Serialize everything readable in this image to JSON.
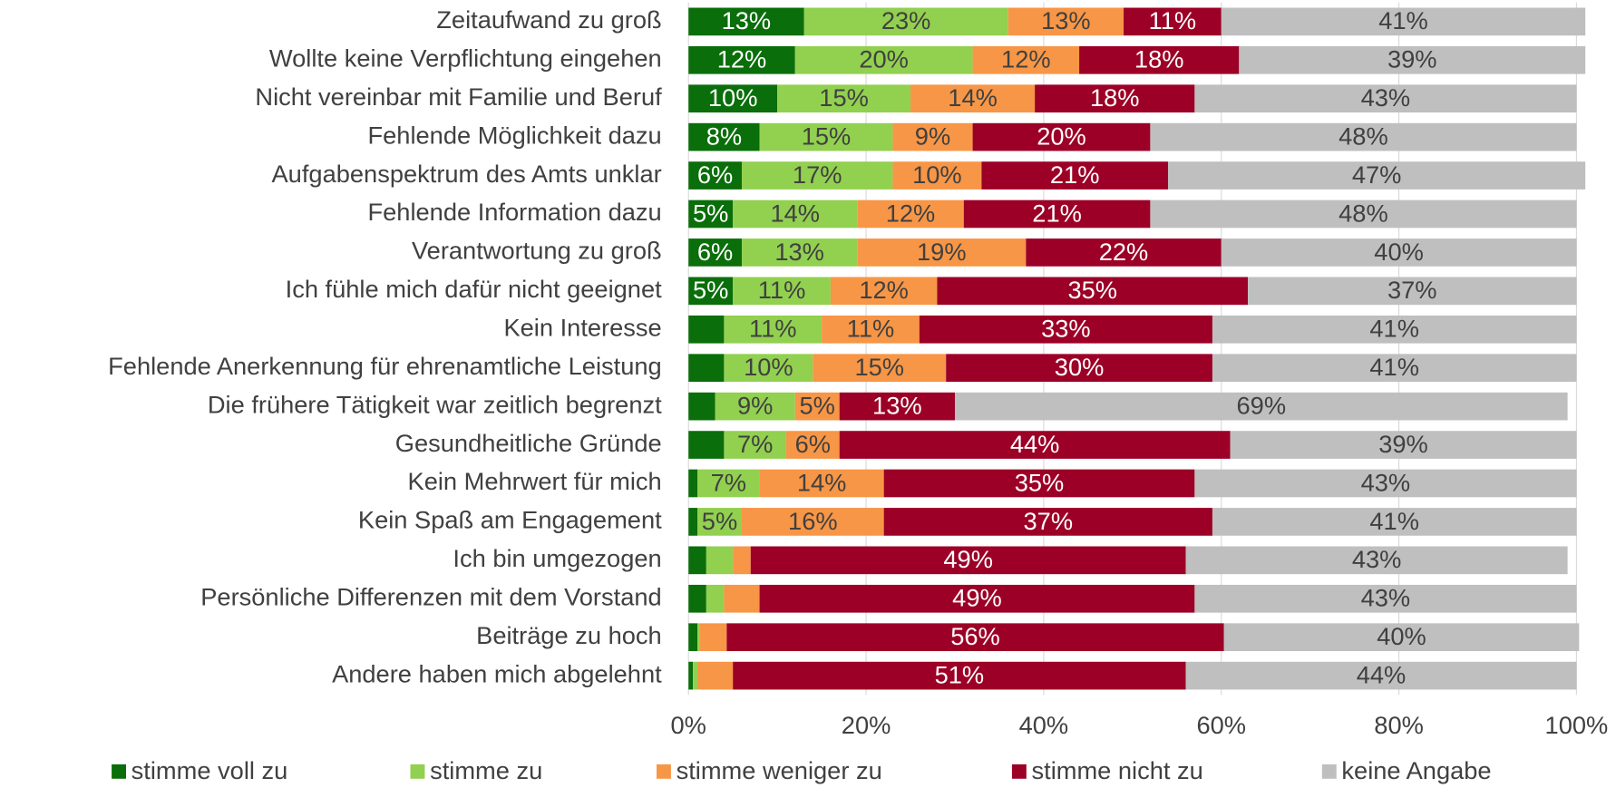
{
  "chart_data": {
    "type": "stacked-barh",
    "categories": [
      "Zeitaufwand zu groß",
      "Wollte keine Verpflichtung eingehen",
      "Nicht vereinbar mit Familie und Beruf",
      "Fehlende Möglichkeit dazu",
      "Aufgabenspektrum des Amts unklar",
      "Fehlende Information dazu",
      "Verantwortung zu groß",
      "Ich fühle mich dafür nicht geeignet",
      "Kein Interesse",
      "Fehlende Anerkennung für ehrenamtliche Leistung",
      "Die frühere Tätigkeit war zeitlich begrenzt",
      "Gesundheitliche Gründe",
      "Kein Mehrwert für mich",
      "Kein Spaß am Engagement",
      "Ich bin umgezogen",
      "Persönliche Differenzen mit dem Vorstand",
      "Beiträge zu hoch",
      "Andere haben mich abgelehnt"
    ],
    "series": [
      {
        "name": "stimme voll zu",
        "color": "#0a6e0a",
        "values": [
          13,
          12,
          10,
          8,
          6,
          5,
          6,
          5,
          4,
          4,
          3,
          4,
          1,
          1,
          2,
          2,
          1,
          0.5
        ],
        "value_labels": [
          "13%",
          "12%",
          "10%",
          "8%",
          "6%",
          "5%",
          "6%",
          "5%",
          null,
          null,
          null,
          null,
          null,
          null,
          null,
          null,
          null,
          null
        ]
      },
      {
        "name": "stimme zu",
        "color": "#92d050",
        "values": [
          23,
          20,
          15,
          15,
          17,
          14,
          13,
          11,
          11,
          10,
          9,
          7,
          7,
          5,
          3,
          2,
          0.3,
          0.5
        ],
        "value_labels": [
          "23%",
          "20%",
          "15%",
          "15%",
          "17%",
          "14%",
          "13%",
          "11%",
          "11%",
          "10%",
          "9%",
          "7%",
          "7%",
          "5%",
          null,
          null,
          null,
          null
        ]
      },
      {
        "name": "stimme weniger zu",
        "color": "#f79646",
        "values": [
          13,
          12,
          14,
          9,
          10,
          12,
          19,
          12,
          11,
          15,
          5,
          6,
          14,
          16,
          2,
          4,
          3,
          4
        ],
        "value_labels": [
          "13%",
          "12%",
          "14%",
          "9%",
          "10%",
          "12%",
          "19%",
          "12%",
          "11%",
          "15%",
          "5%",
          "6%",
          "14%",
          "16%",
          null,
          null,
          null,
          null
        ]
      },
      {
        "name": "stimme nicht zu",
        "color": "#9c0026",
        "values": [
          11,
          18,
          18,
          20,
          21,
          21,
          22,
          35,
          33,
          30,
          13,
          44,
          35,
          37,
          49,
          49,
          56,
          51
        ],
        "value_labels": [
          "11%",
          "18%",
          "18%",
          "20%",
          "21%",
          "21%",
          "22%",
          "35%",
          "33%",
          "30%",
          "13%",
          "44%",
          "35%",
          "37%",
          "49%",
          "49%",
          "56%",
          "51%"
        ]
      },
      {
        "name": "keine Angabe",
        "color": "#bfbfbf",
        "values": [
          41,
          39,
          43,
          48,
          47,
          48,
          40,
          37,
          41,
          41,
          69,
          39,
          43,
          41,
          43,
          43,
          40,
          44
        ],
        "value_labels": [
          "41%",
          "39%",
          "43%",
          "48%",
          "47%",
          "48%",
          "40%",
          "37%",
          "41%",
          "41%",
          "69%",
          "39%",
          "43%",
          "41%",
          "43%",
          "43%",
          "40%",
          "44%"
        ]
      }
    ],
    "xlim": [
      0,
      100
    ],
    "xticks": [
      {
        "value": 0,
        "label": "0%"
      },
      {
        "value": 20,
        "label": "20%"
      },
      {
        "value": 40,
        "label": "40%"
      },
      {
        "value": 60,
        "label": "60%"
      },
      {
        "value": 80,
        "label": "80%"
      },
      {
        "value": 100,
        "label": "100%"
      }
    ],
    "grid": true,
    "legend": "bottom"
  }
}
